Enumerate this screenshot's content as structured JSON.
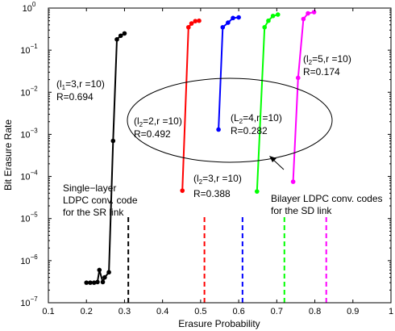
{
  "chart_data": {
    "type": "line",
    "title": "",
    "xlabel": "Erasure Probability",
    "ylabel": "Bit Erasure Rate",
    "xlim": [
      0.1,
      1.0
    ],
    "ylim": [
      1e-07,
      1
    ],
    "yscale": "log",
    "grid": false,
    "legend": "none",
    "x_ticks": [
      {
        "value": 0.1,
        "label": "0.1"
      },
      {
        "value": 0.2,
        "label": "0.2"
      },
      {
        "value": 0.3,
        "label": "0.3"
      },
      {
        "value": 0.4,
        "label": "0.4"
      },
      {
        "value": 0.5,
        "label": "0.5"
      },
      {
        "value": 0.6,
        "label": "0.6"
      },
      {
        "value": 0.7,
        "label": "0.7"
      },
      {
        "value": 0.8,
        "label": "0.8"
      },
      {
        "value": 0.9,
        "label": "0.9"
      },
      {
        "value": 1.0,
        "label": "1"
      }
    ],
    "y_ticks": [
      {
        "value": 1e-07,
        "base": "10",
        "exp": "−7"
      },
      {
        "value": 1e-06,
        "base": "10",
        "exp": "−6"
      },
      {
        "value": 1e-05,
        "base": "10",
        "exp": "−5"
      },
      {
        "value": 0.0001,
        "base": "10",
        "exp": "−4"
      },
      {
        "value": 0.001,
        "base": "10",
        "exp": "−3"
      },
      {
        "value": 0.01,
        "base": "10",
        "exp": "−2"
      },
      {
        "value": 0.1,
        "base": "10",
        "exp": "−1"
      },
      {
        "value": 1,
        "base": "10",
        "exp": "0"
      }
    ],
    "series": [
      {
        "color": "#000000",
        "x": [
          0.2,
          0.21,
          0.22,
          0.229,
          0.234,
          0.243,
          0.248,
          0.259,
          0.27,
          0.28,
          0.29,
          0.3
        ],
        "y": [
          3e-07,
          3e-07,
          3e-07,
          3.1e-07,
          6e-07,
          3.1e-07,
          4e-07,
          5.3e-07,
          0.0007,
          0.18,
          0.22,
          0.25
        ]
      },
      {
        "color": "#ff0000",
        "x": [
          0.452,
          0.468,
          0.476,
          0.486,
          0.496
        ],
        "y": [
          4.6e-05,
          0.35,
          0.43,
          0.49,
          0.5
        ]
      },
      {
        "color": "#0000ff",
        "x": [
          0.547,
          0.558,
          0.572,
          0.585,
          0.6
        ],
        "y": [
          0.0013,
          0.35,
          0.45,
          0.58,
          0.6
        ]
      },
      {
        "color": "#00ff00",
        "x": [
          0.648,
          0.668,
          0.678,
          0.69,
          0.703
        ],
        "y": [
          4.4e-05,
          0.35,
          0.5,
          0.65,
          0.7
        ]
      },
      {
        "color": "#ff00ff",
        "x": [
          0.743,
          0.756,
          0.77,
          0.782,
          0.798
        ],
        "y": [
          7.5e-05,
          0.022,
          0.55,
          0.75,
          0.8
        ]
      }
    ],
    "thresholds": [
      {
        "x": 0.31,
        "color": "#000000",
        "y_top": 1.1e-05
      },
      {
        "x": 0.51,
        "color": "#ff0000",
        "y_top": 1.1e-05
      },
      {
        "x": 0.61,
        "color": "#0000ff",
        "y_top": 1.1e-05
      },
      {
        "x": 0.72,
        "color": "#00ff00",
        "y_top": 1.1e-05
      },
      {
        "x": 0.83,
        "color": "#ff00ff",
        "y_top": 1.1e-05
      }
    ],
    "annotations": {
      "black_code": [
        "(l",
        "1",
        "=3,r =10)",
        "R=0.694"
      ],
      "magenta_code": [
        "(l",
        "2",
        "=5,r =10)",
        "R=0.174"
      ],
      "red_code": [
        "(l",
        "2",
        "=2,r =10)",
        "R=0.492"
      ],
      "green_code": [
        "(L",
        "2",
        "=4,r =10)",
        "R=0.282"
      ],
      "blue_code": [
        "(l",
        "2",
        "=3,r =10)",
        "R=0.388"
      ],
      "single_layer": [
        "Single−layer",
        "LDPC conv. code",
        "for the SR link"
      ],
      "bilayer": [
        "Bilayer LDPC conv. codes",
        "for the SD link"
      ]
    }
  }
}
